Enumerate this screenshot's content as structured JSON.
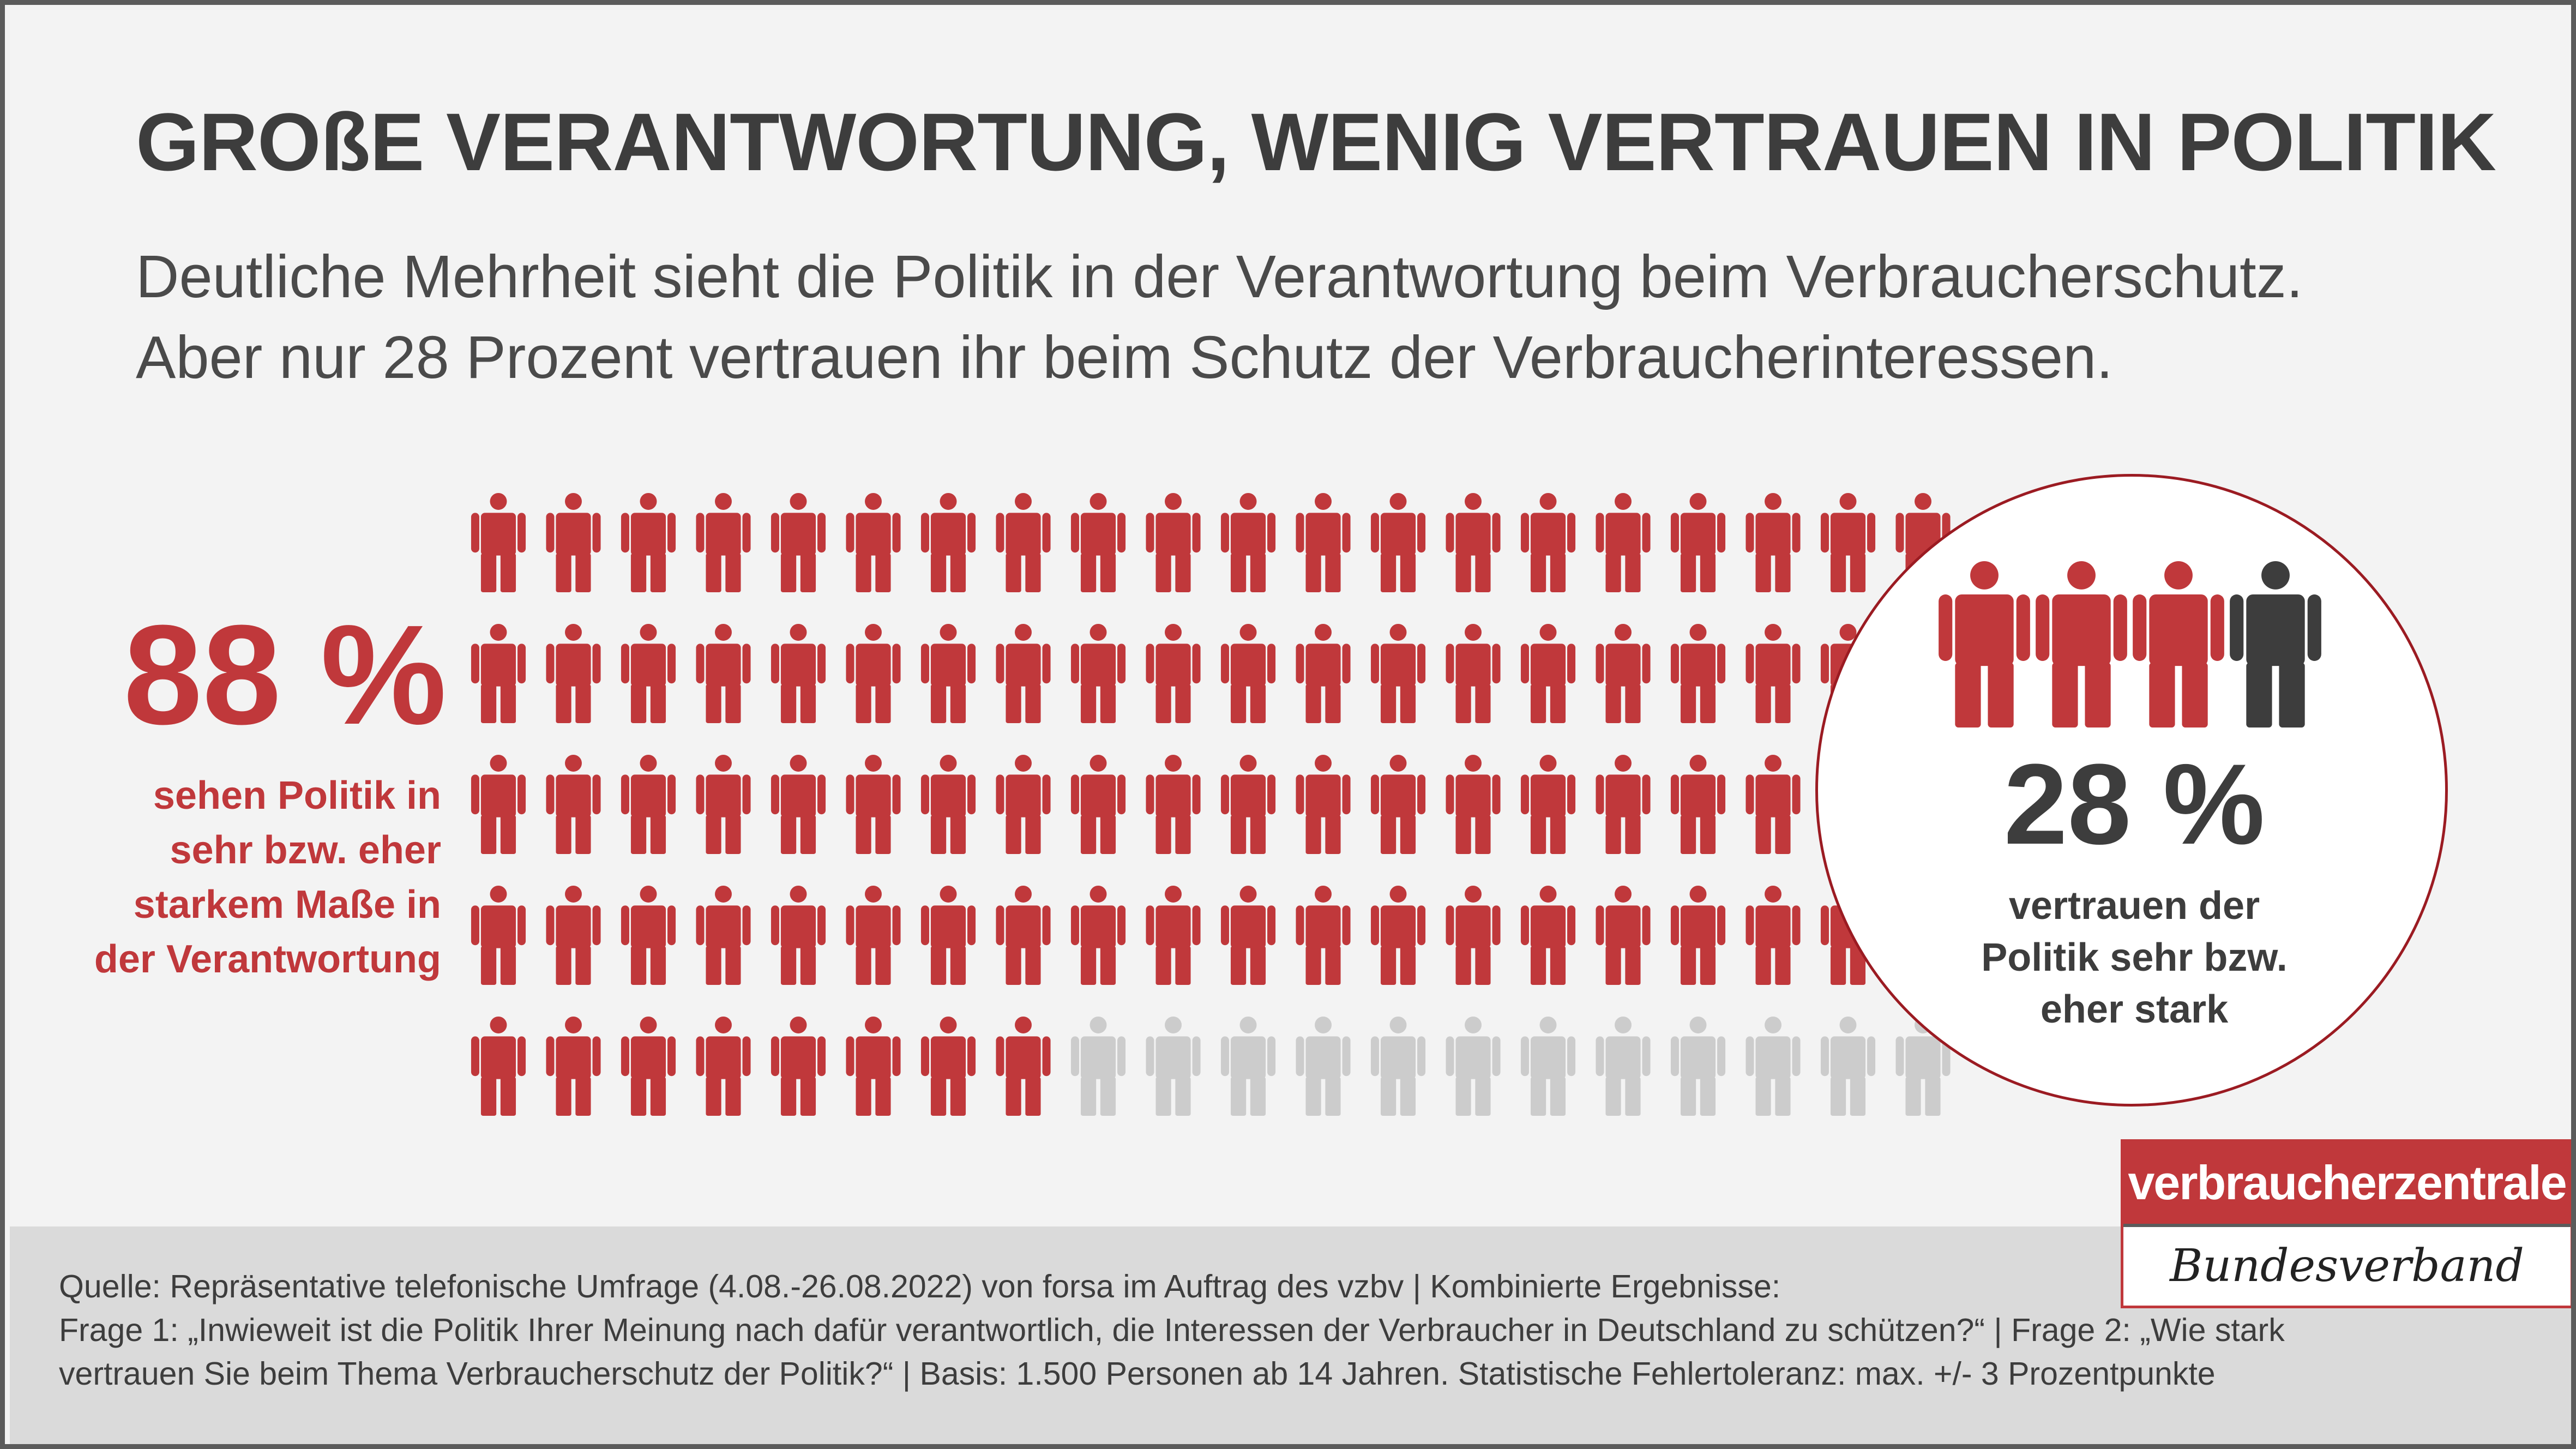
{
  "title": "GROßE VERANTWORTUNG, WENIG VERTRAUEN IN POLITIK",
  "subtitle": {
    "line1": "Deutliche Mehrheit sieht die Politik in der Verantwortung beim Verbraucherschutz.",
    "line2": "Aber nur 28 Prozent vertrauen ihr beim Schutz der Verbraucherinteressen."
  },
  "left": {
    "percent": "88 %",
    "caption": [
      "sehen Politik in",
      "sehr bzw. eher",
      "starkem Maße in",
      "der Verantwortung"
    ]
  },
  "circle": {
    "percent": "28 %",
    "caption": [
      "vertrauen der",
      "Politik sehr bzw.",
      "eher stark"
    ]
  },
  "chart_data": [
    {
      "type": "pictogram",
      "value_percent": 88,
      "rows": 5,
      "columns": 20,
      "filled": 88,
      "total": 100,
      "filled_color": "#c0383b",
      "empty_color": "#cccccc"
    },
    {
      "type": "pictogram",
      "value_percent": 28,
      "figures": 4,
      "filled_color": "#c0383b",
      "empty_color": "#3d3d3d",
      "figure_states": [
        "filled",
        "filled",
        "filled",
        "other"
      ]
    }
  ],
  "footer": {
    "lines": [
      "Quelle: Repräsentative telefonische Umfrage (4.08.-26.08.2022) von forsa im Auftrag des vzbv | Kombinierte Ergebnisse:",
      "Frage 1: „Inwieweit ist die Politik Ihrer Meinung nach dafür verantwortlich, die Interessen der Verbraucher in Deutschland zu schützen?“ | Frage 2: „Wie stark",
      "vertrauen Sie beim Thema Verbraucherschutz der Politik?“ | Basis: 1.500 Personen ab 14 Jahren. Statistische Fehlertoleranz: max. +/- 3 Prozentpunkte"
    ]
  },
  "logo": {
    "top": "verbraucherzentrale",
    "bottom": "Bundesverband"
  },
  "colors": {
    "accent": "#c0383b",
    "dark": "#3d3d3d",
    "gray_figure": "#cccccc",
    "background": "#f3f3f3",
    "footer": "#dadada",
    "circle_border": "#9b1b22"
  }
}
